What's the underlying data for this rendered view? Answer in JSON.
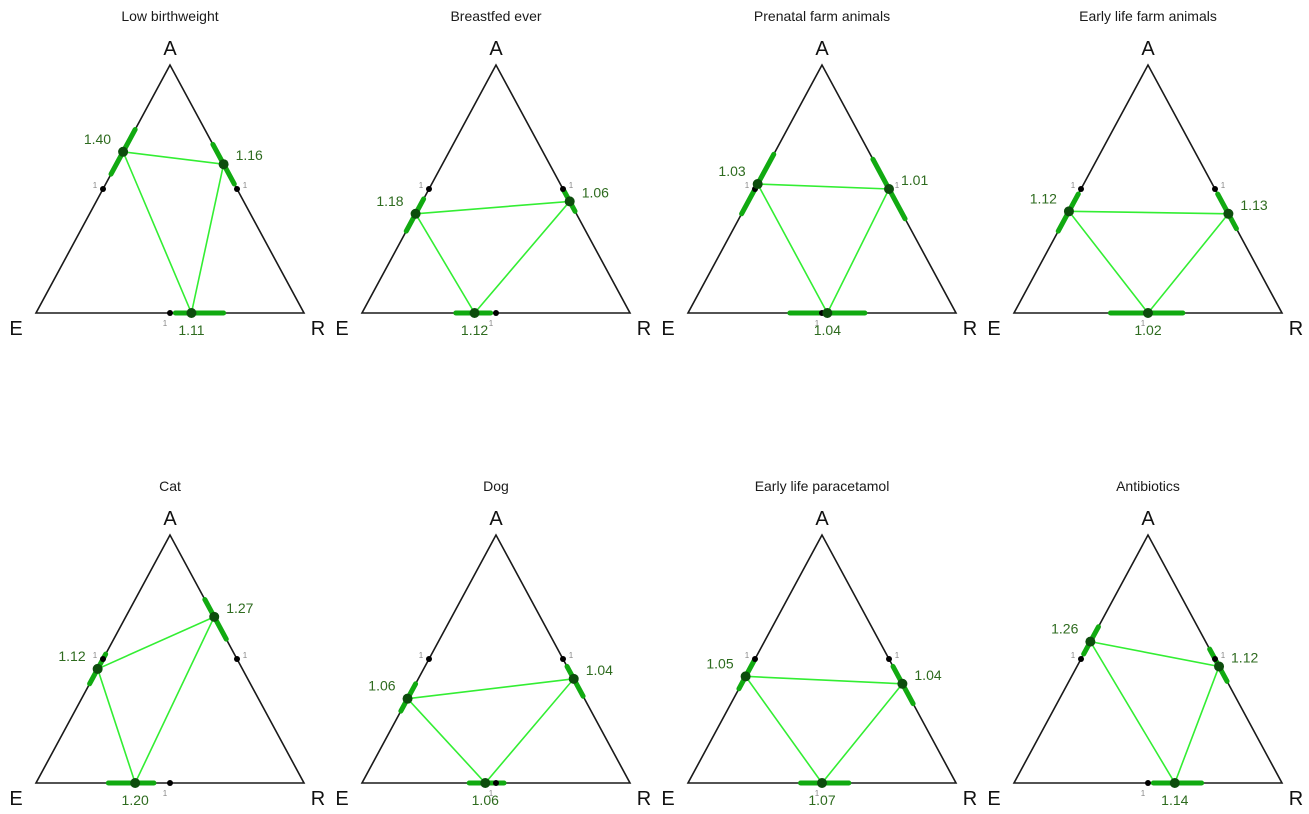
{
  "chart_data": {
    "type": "ternary",
    "vertices": {
      "top": "A",
      "left": "E",
      "right": "R"
    },
    "null_value": "1",
    "colors": {
      "triangle": "#1a1a1a",
      "connector": "#33ee33",
      "ci": "#11aa11",
      "point": "#0d4d0d",
      "null_point": "#000000",
      "label": "#2e6b1f"
    },
    "panels": [
      {
        "title": "Low birthweight",
        "odds_ratios": {
          "AE": "1.40",
          "AR": "1.16",
          "ER": "1.11"
        },
        "point": {
          "AE": 0.65,
          "AR": 0.6,
          "ER": 0.58
        },
        "ci_low": {
          "AE": 0.56,
          "AR": 0.52,
          "ER": 0.52
        },
        "ci_high": {
          "AE": 0.74,
          "AR": 0.68,
          "ER": 0.7
        }
      },
      {
        "title": "Breastfed ever",
        "odds_ratios": {
          "AE": "1.18",
          "AR": "1.06",
          "ER": "1.12"
        },
        "point": {
          "AE": 0.4,
          "AR": 0.45,
          "ER": 0.42
        },
        "ci_low": {
          "AE": 0.33,
          "AR": 0.41,
          "ER": 0.35
        },
        "ci_high": {
          "AE": 0.46,
          "AR": 0.5,
          "ER": 0.48
        }
      },
      {
        "title": "Prenatal farm animals",
        "odds_ratios": {
          "AE": "1.03",
          "AR": "1.01",
          "ER": "1.04"
        },
        "point": {
          "AE": 0.52,
          "AR": 0.5,
          "ER": 0.52
        },
        "ci_low": {
          "AE": 0.4,
          "AR": 0.38,
          "ER": 0.38
        },
        "ci_high": {
          "AE": 0.64,
          "AR": 0.62,
          "ER": 0.66
        }
      },
      {
        "title": "Early life farm animals",
        "odds_ratios": {
          "AE": "1.12",
          "AR": "1.13",
          "ER": "1.02"
        },
        "point": {
          "AE": 0.41,
          "AR": 0.4,
          "ER": 0.5
        },
        "ci_low": {
          "AE": 0.33,
          "AR": 0.34,
          "ER": 0.36
        },
        "ci_high": {
          "AE": 0.48,
          "AR": 0.48,
          "ER": 0.63
        }
      },
      {
        "title": "Cat",
        "odds_ratios": {
          "AE": "1.12",
          "AR": "1.27",
          "ER": "1.20"
        },
        "point": {
          "AE": 0.46,
          "AR": 0.67,
          "ER": 0.37
        },
        "ci_low": {
          "AE": 0.4,
          "AR": 0.58,
          "ER": 0.27
        },
        "ci_high": {
          "AE": 0.52,
          "AR": 0.74,
          "ER": 0.44
        }
      },
      {
        "title": "Dog",
        "odds_ratios": {
          "AE": "1.06",
          "AR": "1.04",
          "ER": "1.06"
        },
        "point": {
          "AE": 0.34,
          "AR": 0.42,
          "ER": 0.46
        },
        "ci_low": {
          "AE": 0.29,
          "AR": 0.35,
          "ER": 0.4
        },
        "ci_high": {
          "AE": 0.4,
          "AR": 0.47,
          "ER": 0.53
        }
      },
      {
        "title": "Early life paracetamol",
        "odds_ratios": {
          "AE": "1.05",
          "AR": "1.04",
          "ER": "1.07"
        },
        "point": {
          "AE": 0.43,
          "AR": 0.4,
          "ER": 0.5
        },
        "ci_low": {
          "AE": 0.38,
          "AR": 0.32,
          "ER": 0.42
        },
        "ci_high": {
          "AE": 0.5,
          "AR": 0.47,
          "ER": 0.6
        }
      },
      {
        "title": "Antibiotics",
        "odds_ratios": {
          "AE": "1.26",
          "AR": "1.12",
          "ER": "1.14"
        },
        "point": {
          "AE": 0.57,
          "AR": 0.47,
          "ER": 0.6
        },
        "ci_low": {
          "AE": 0.52,
          "AR": 0.41,
          "ER": 0.52
        },
        "ci_high": {
          "AE": 0.63,
          "AR": 0.54,
          "ER": 0.7
        }
      }
    ]
  }
}
